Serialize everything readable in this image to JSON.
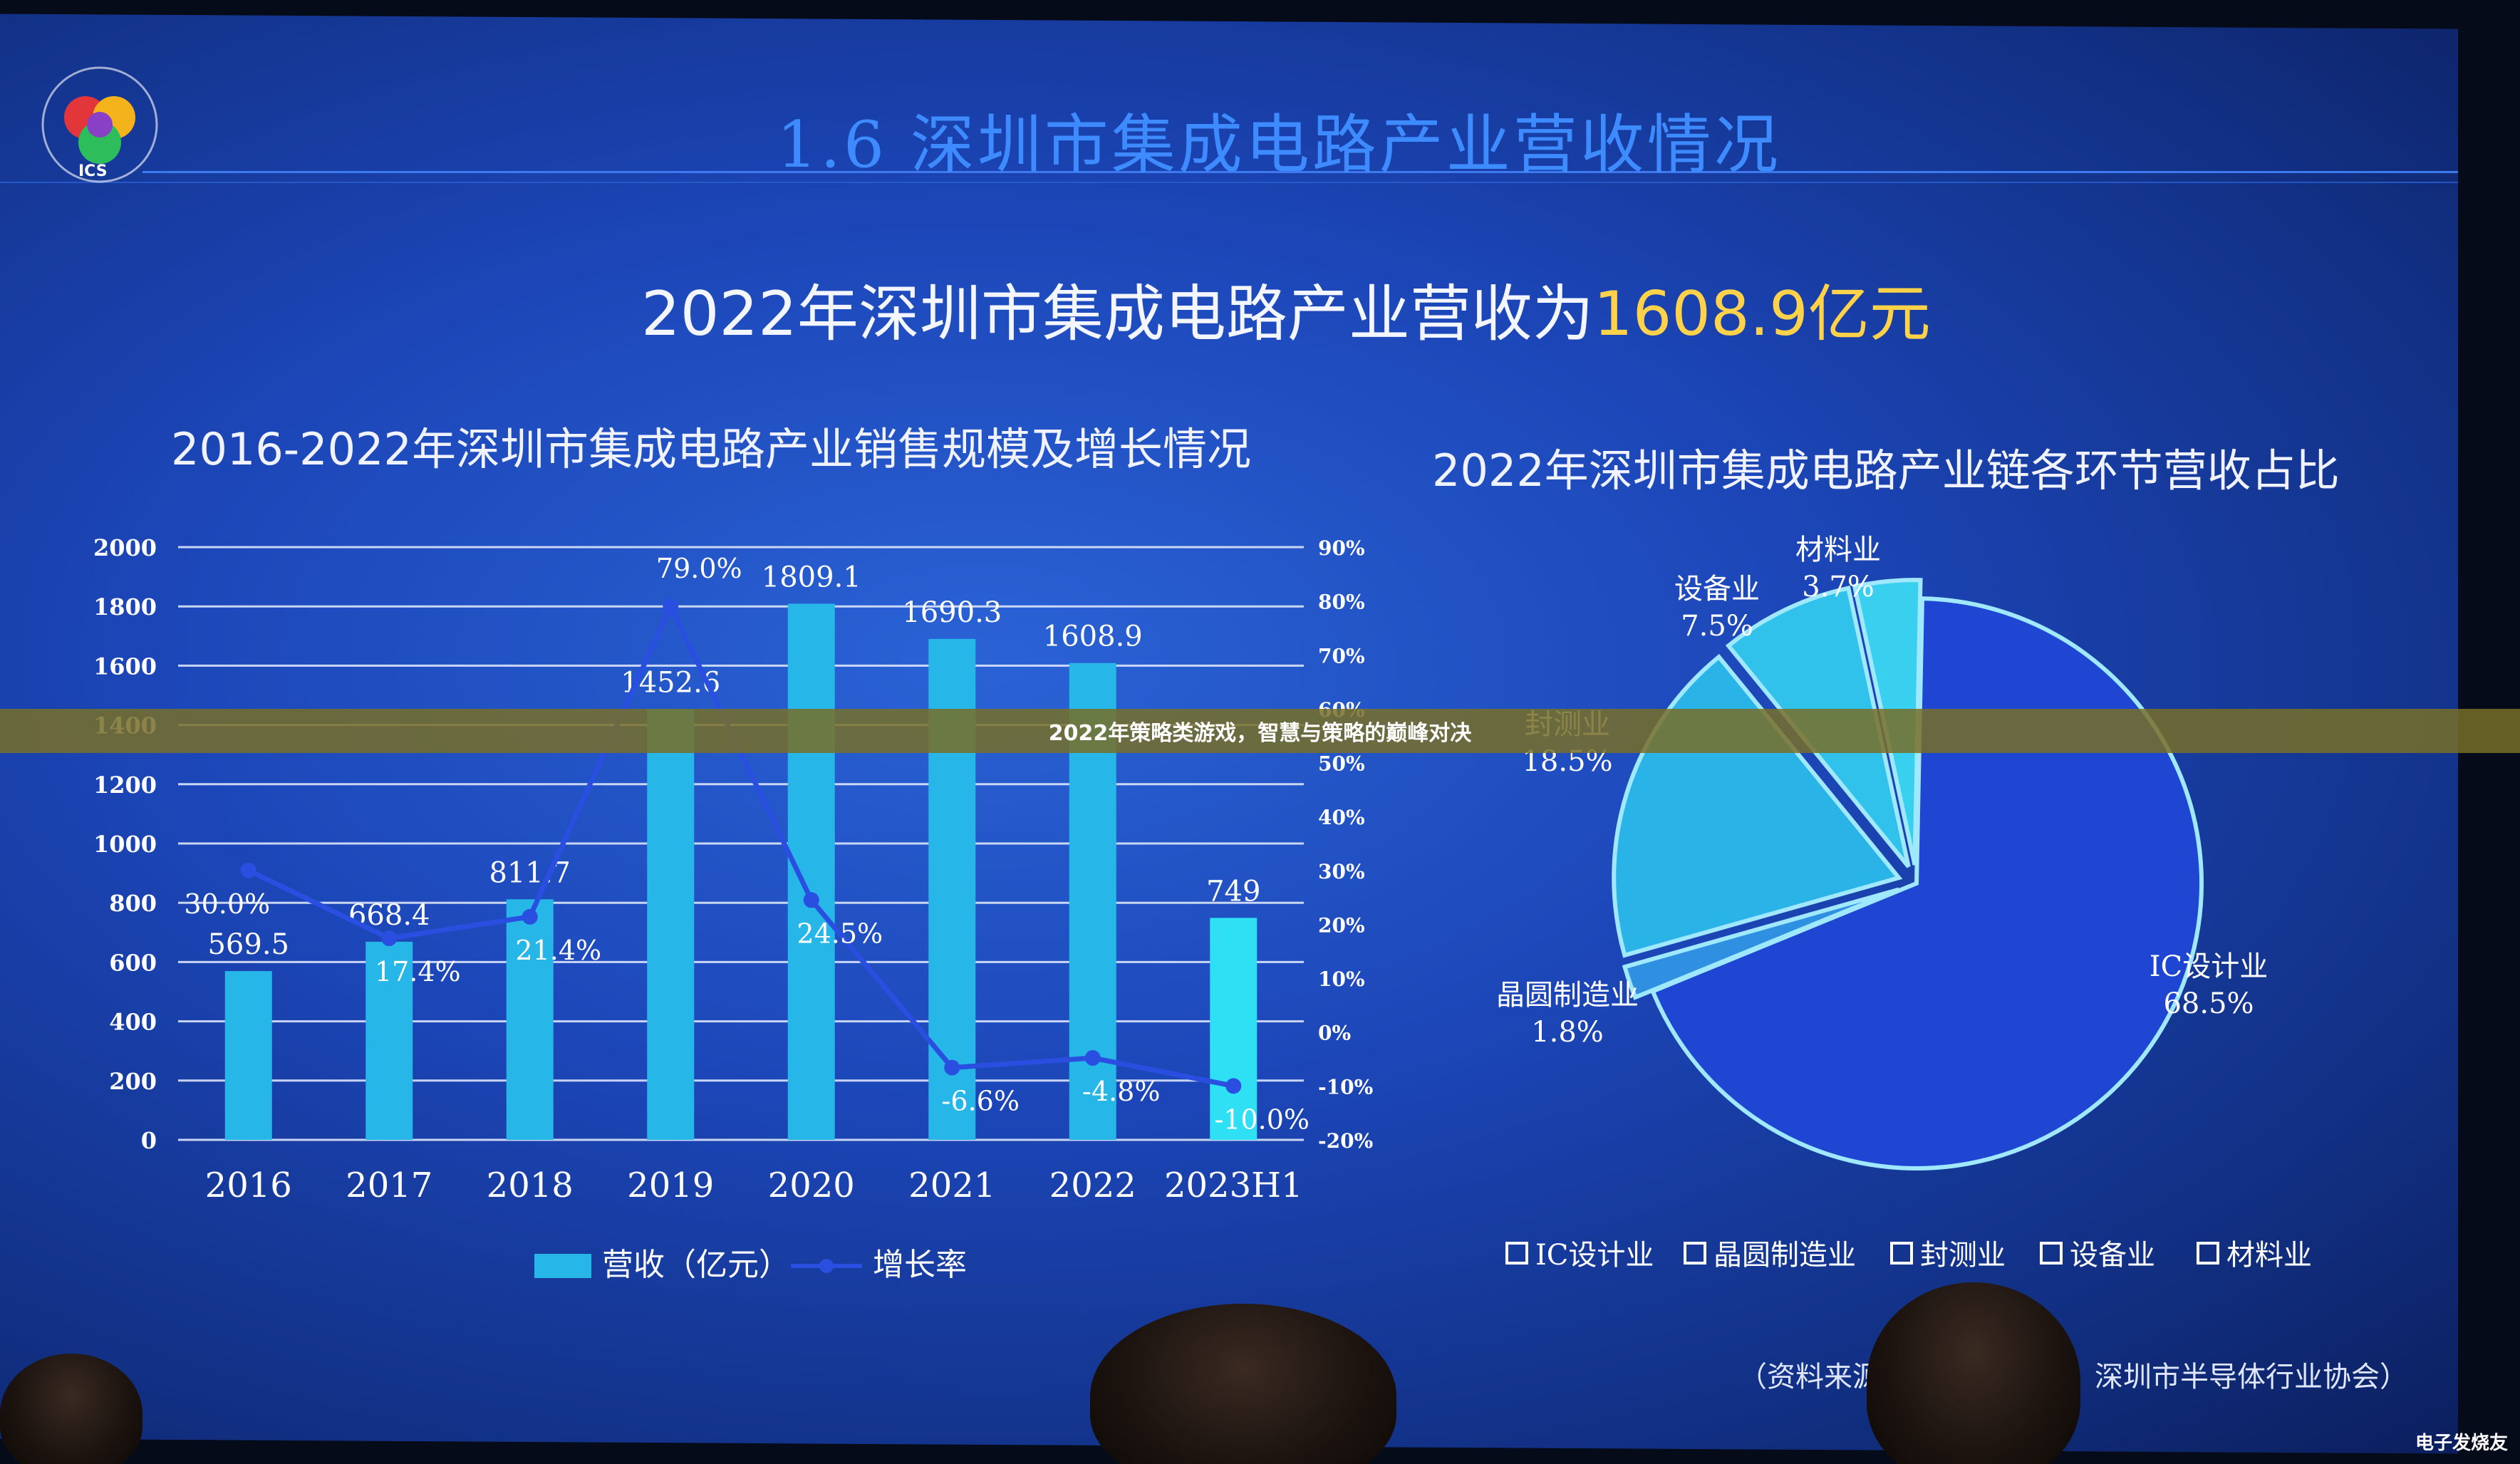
{
  "slide": {
    "title": "1.6 深圳市集成电路产业营收情况",
    "headline_prefix": "2022年深圳市集成电路产业营收为",
    "headline_value": "1608.9亿元",
    "logo_text": "ICS",
    "source_left": "（资料来源",
    "source_right": "深圳市半导体行业协会）"
  },
  "banner": {
    "text": "2022年策略类游戏，智慧与策略的巅峰对决"
  },
  "watermark": {
    "text": "电子发烧友"
  },
  "colors": {
    "bar": "#27b6e8",
    "bar_highlight": "#2fe0f5",
    "line": "#2a4fe0",
    "pie_ic": "#1e46d2",
    "pie_wafer": "#2f8fe0",
    "pie_test": "#2ab3e6",
    "pie_equip": "#30c2ea",
    "pie_material": "#38d0ee",
    "pie_edge": "#9fe8ff"
  },
  "chart_data": [
    {
      "type": "bar",
      "title": "2016-2022年深圳市集成电路产业销售规模及增长情况",
      "categories": [
        "2016",
        "2017",
        "2018",
        "2019",
        "2020",
        "2021",
        "2022",
        "2023H1"
      ],
      "series": [
        {
          "name": "营收（亿元）",
          "type": "bar",
          "values": [
            569.5,
            668.4,
            811.7,
            1452.6,
            1809.1,
            1690.3,
            1608.9,
            749
          ]
        },
        {
          "name": "增长率",
          "type": "line",
          "values": [
            30.0,
            17.4,
            21.4,
            79.0,
            24.5,
            -6.6,
            -4.8,
            -10.0
          ]
        }
      ],
      "bar_labels": [
        "569.5",
        "668.4",
        "811.7",
        "1452.6",
        "1809.1",
        "1690.3",
        "1608.9",
        "749"
      ],
      "line_labels": [
        "30.0%",
        "17.4%",
        "21.4%",
        "79.0%",
        "24.5%",
        "-6.6%",
        "-4.8%",
        "-10.0%"
      ],
      "y_left": {
        "min": 0,
        "max": 2000,
        "ticks": [
          "0",
          "200",
          "400",
          "600",
          "800",
          "1000",
          "1200",
          "1400",
          "1600",
          "1800",
          "2000"
        ]
      },
      "y_right": {
        "min": -20,
        "max": 90,
        "ticks": [
          "-20%",
          "-10%",
          "0%",
          "10%",
          "20%",
          "30%",
          "40%",
          "50%",
          "60%",
          "70%",
          "80%",
          "90%"
        ]
      },
      "grid": true,
      "legend_position": "bottom"
    },
    {
      "type": "pie",
      "title": "2022年深圳市集成电路产业链各环节营收占比",
      "slices": [
        {
          "name": "IC设计业",
          "value": 68.5,
          "label": "68.5%"
        },
        {
          "name": "晶圆制造业",
          "value": 1.8,
          "label": "1.8%"
        },
        {
          "name": "封测业",
          "value": 18.5,
          "label": "18.5%"
        },
        {
          "name": "设备业",
          "value": 7.5,
          "label": "7.5%"
        },
        {
          "name": "材料业",
          "value": 3.7,
          "label": "3.7%"
        }
      ],
      "legend_position": "bottom"
    }
  ]
}
